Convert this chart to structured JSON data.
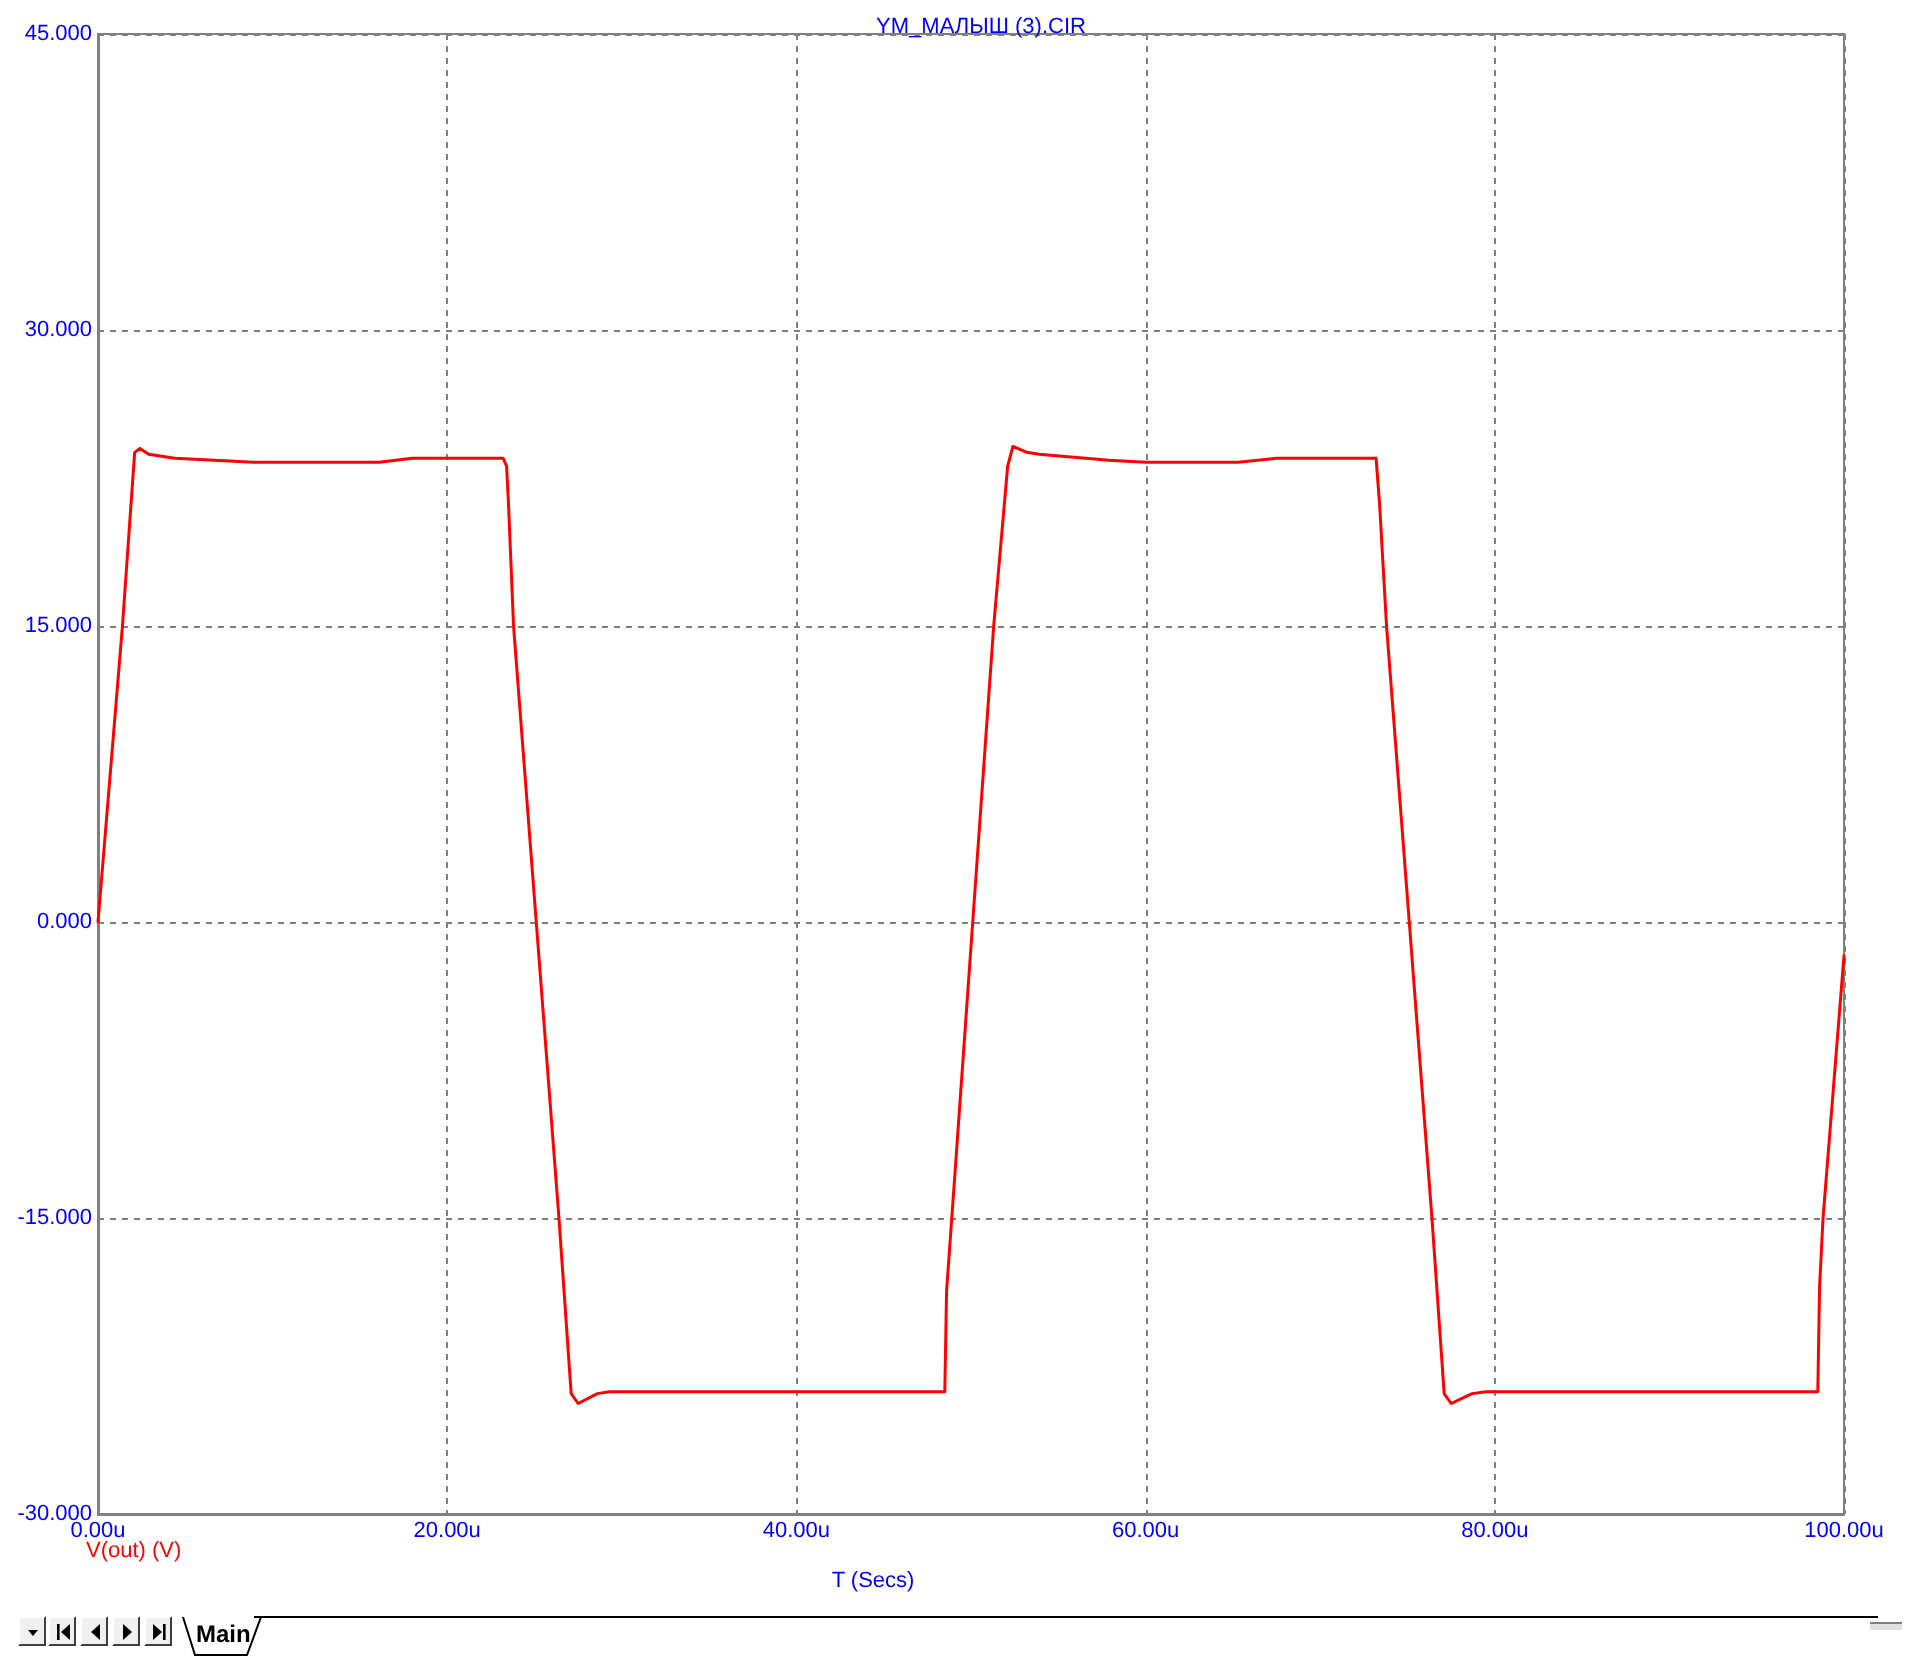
{
  "chart_data": {
    "type": "line",
    "title": "YM_МАЛЫШ (3).CIR",
    "xlabel": "T (Secs)",
    "x": [
      0,
      1.4,
      2.1,
      2.4,
      2.9,
      4.4,
      8.9,
      16.1,
      18.0,
      23.2,
      23.4,
      23.5,
      23.8,
      25.1,
      26.4,
      27.1,
      27.5,
      28.6,
      29.3,
      48.5,
      48.6,
      48.9,
      50.1,
      51.3,
      52.1,
      52.4,
      53.2,
      53.9,
      57.9,
      60,
      65.3,
      67.5,
      73.2,
      73.4,
      73.8,
      75.1,
      76.4,
      77.1,
      77.5,
      78.7,
      79.5,
      98.5,
      98.6,
      98.8,
      100
    ],
    "series": [
      {
        "name": "V(out) (V)",
        "color": "#ff0000",
        "values": [
          0,
          15,
          23.8,
          24,
          23.7,
          23.5,
          23.3,
          23.3,
          23.5,
          23.5,
          23.1,
          21.4,
          15,
          0,
          -15,
          -23.9,
          -24.4,
          -23.9,
          -23.8,
          -23.8,
          -18.7,
          -15,
          0,
          15,
          23.1,
          24.1,
          23.8,
          23.7,
          23.4,
          23.3,
          23.3,
          23.5,
          23.5,
          21.2,
          15,
          0,
          -15,
          -23.9,
          -24.4,
          -23.9,
          -23.8,
          -23.8,
          -18.5,
          -15,
          -1.7
        ]
      }
    ],
    "xlim": [
      0,
      100
    ],
    "ylim": [
      -30,
      45
    ],
    "xticks": [
      {
        "value": 0,
        "label": "0.00u"
      },
      {
        "value": 20,
        "label": "20.00u"
      },
      {
        "value": 40,
        "label": "40.00u"
      },
      {
        "value": 60,
        "label": "60.00u"
      },
      {
        "value": 80,
        "label": "80.00u"
      },
      {
        "value": 100,
        "label": "100.00u"
      }
    ],
    "yticks": [
      {
        "value": -30,
        "label": "-30.000"
      },
      {
        "value": -15,
        "label": "-15.000"
      },
      {
        "value": 0,
        "label": "0.000"
      },
      {
        "value": 15,
        "label": "15.000"
      },
      {
        "value": 30,
        "label": "30.000"
      },
      {
        "value": 45,
        "label": "45.000"
      }
    ],
    "grid": true,
    "legend": "bottom left",
    "annotations": [
      "Main"
    ]
  }
}
